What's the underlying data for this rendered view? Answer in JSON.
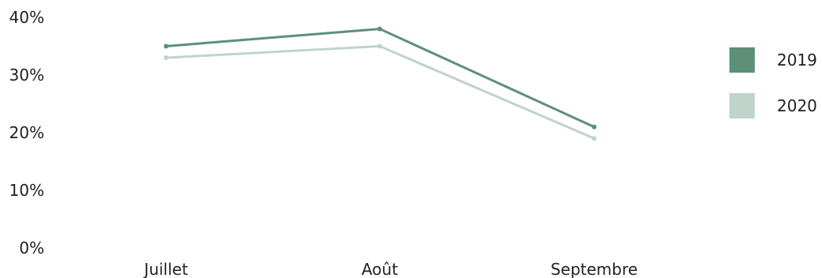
{
  "chart_data": {
    "type": "line",
    "categories": [
      "Juillet",
      "Août",
      "Septembre"
    ],
    "series": [
      {
        "name": "2019",
        "values": [
          35,
          38,
          21
        ],
        "color": "#5e8f78"
      },
      {
        "name": "2020",
        "values": [
          33,
          35,
          19
        ],
        "color": "#bfd4cb"
      }
    ],
    "ylim": [
      0,
      40
    ],
    "yticks": [
      "0%",
      "10%",
      "20%",
      "30%",
      "40%"
    ],
    "grid": false,
    "legend": "right"
  }
}
